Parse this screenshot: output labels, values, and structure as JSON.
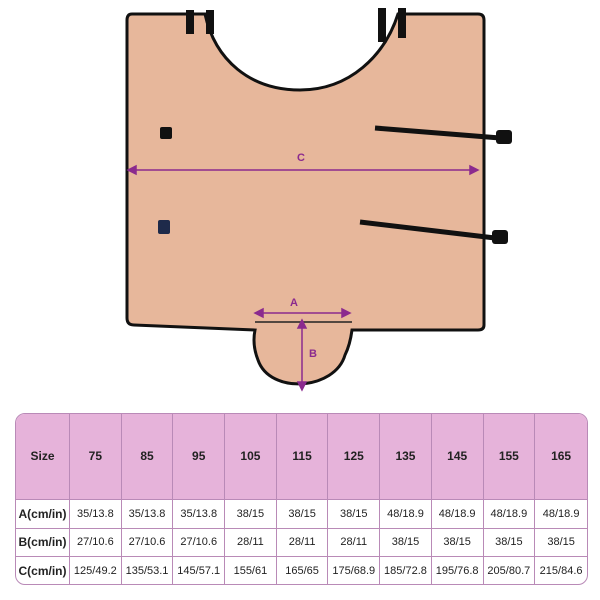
{
  "diagram": {
    "labels": {
      "a": "A",
      "b": "B",
      "c": "C"
    },
    "colors": {
      "fabric": "#e7b79b",
      "edge": "#111111",
      "dimension": "#8b2a8e"
    }
  },
  "size_chart": {
    "headers": [
      "Size",
      "75",
      "85",
      "95",
      "105",
      "115",
      "125",
      "135",
      "145",
      "155",
      "165"
    ],
    "rows": [
      {
        "label": "A(cm/in)",
        "values": [
          "35/13.8",
          "35/13.8",
          "35/13.8",
          "38/15",
          "38/15",
          "38/15",
          "48/18.9",
          "48/18.9",
          "48/18.9",
          "48/18.9"
        ]
      },
      {
        "label": "B(cm/in)",
        "values": [
          "27/10.6",
          "27/10.6",
          "27/10.6",
          "28/11",
          "28/11",
          "28/11",
          "38/15",
          "38/15",
          "38/15",
          "38/15"
        ]
      },
      {
        "label": "C(cm/in)",
        "values": [
          "125/49.2",
          "135/53.1",
          "145/57.1",
          "155/61",
          "165/65",
          "175/68.9",
          "185/72.8",
          "195/76.8",
          "205/80.7",
          "215/84.6"
        ]
      }
    ],
    "header_color": "#e6b3da"
  }
}
